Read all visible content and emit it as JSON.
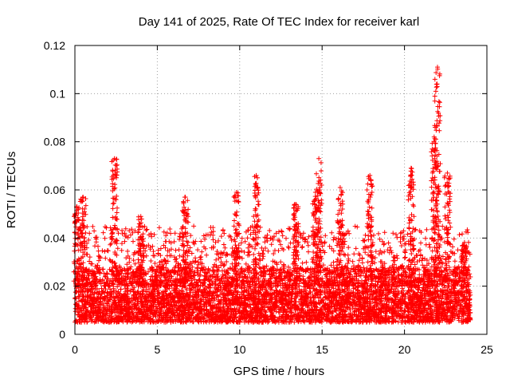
{
  "chart_data": {
    "type": "scatter",
    "title": "Day 141 of 2025, Rate Of TEC Index for receiver karl",
    "xlabel": "GPS time / hours",
    "ylabel": "ROTI / TECUs",
    "xlim": [
      0,
      25
    ],
    "ylim": [
      0,
      0.12
    ],
    "xticks": [
      "0",
      "5",
      "10",
      "15",
      "20",
      "25"
    ],
    "yticks": [
      "0",
      "0.02",
      "0.04",
      "0.06",
      "0.08",
      "0.1",
      "0.12"
    ],
    "grid": true,
    "marker": "+",
    "color": "#ff0000",
    "series": [
      {
        "name": "ROTI",
        "description_of_distribution": "dense band 0.005-0.025 all day, with spikes",
        "baseline_band": [
          0.005,
          0.028
        ],
        "x_range_hours": [
          0,
          24
        ],
        "spikes": [
          {
            "x": 0.1,
            "y": 0.053
          },
          {
            "x": 0.5,
            "y": 0.057
          },
          {
            "x": 2.4,
            "y": 0.073
          },
          {
            "x": 4.0,
            "y": 0.049
          },
          {
            "x": 6.7,
            "y": 0.057
          },
          {
            "x": 9.8,
            "y": 0.059
          },
          {
            "x": 11.0,
            "y": 0.066
          },
          {
            "x": 13.4,
            "y": 0.054
          },
          {
            "x": 14.6,
            "y": 0.059
          },
          {
            "x": 14.8,
            "y": 0.073
          },
          {
            "x": 16.1,
            "y": 0.061
          },
          {
            "x": 17.9,
            "y": 0.066
          },
          {
            "x": 20.4,
            "y": 0.069
          },
          {
            "x": 21.8,
            "y": 0.082
          },
          {
            "x": 22.0,
            "y": 0.111
          },
          {
            "x": 22.6,
            "y": 0.067
          },
          {
            "x": 23.6,
            "y": 0.037
          }
        ]
      }
    ]
  }
}
